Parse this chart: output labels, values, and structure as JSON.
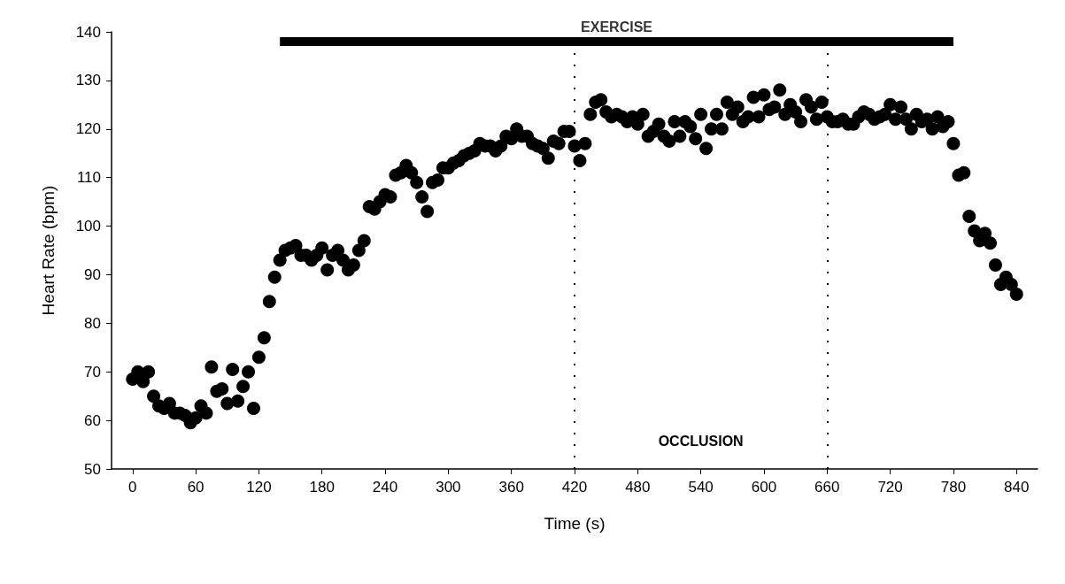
{
  "chart_data": {
    "type": "scatter",
    "xlabel": "Time (s)",
    "ylabel": "Heart Rate (bpm)",
    "xlim": [
      -20,
      860
    ],
    "xticks": [
      0,
      60,
      120,
      180,
      240,
      300,
      360,
      420,
      480,
      540,
      600,
      660,
      720,
      780,
      840
    ],
    "ylim": [
      50,
      140
    ],
    "yticks": [
      50,
      60,
      70,
      80,
      90,
      100,
      110,
      120,
      130,
      140
    ],
    "grid": false,
    "marker": "circle",
    "series": [
      {
        "color": "#000000",
        "x": [
          0,
          5,
          10,
          15,
          20,
          25,
          30,
          35,
          40,
          45,
          50,
          55,
          60,
          65,
          70,
          75,
          80,
          85,
          90,
          95,
          100,
          105,
          110,
          115,
          120,
          125,
          130,
          135,
          140,
          145,
          150,
          155,
          160,
          165,
          170,
          175,
          180,
          185,
          190,
          195,
          200,
          205,
          210,
          215,
          220,
          225,
          230,
          235,
          240,
          245,
          250,
          255,
          260,
          265,
          270,
          275,
          280,
          285,
          290,
          295,
          300,
          305,
          310,
          315,
          320,
          325,
          330,
          335,
          340,
          345,
          350,
          355,
          360,
          365,
          370,
          375,
          380,
          385,
          390,
          395,
          400,
          405,
          410,
          415,
          420,
          425,
          430,
          435,
          440,
          445,
          450,
          455,
          460,
          465,
          470,
          475,
          480,
          485,
          490,
          495,
          500,
          505,
          510,
          515,
          520,
          525,
          530,
          535,
          540,
          545,
          550,
          555,
          560,
          565,
          570,
          575,
          580,
          585,
          590,
          595,
          600,
          605,
          610,
          615,
          620,
          625,
          630,
          635,
          640,
          645,
          650,
          655,
          660,
          665,
          670,
          675,
          680,
          685,
          690,
          695,
          700,
          705,
          710,
          715,
          720,
          725,
          730,
          735,
          740,
          745,
          750,
          755,
          760,
          765,
          770,
          775,
          780,
          785,
          790,
          795,
          800,
          805,
          810,
          815,
          820,
          825,
          830,
          835,
          840
        ],
        "values": [
          68.5,
          70,
          68,
          70,
          65,
          63,
          62.5,
          63.5,
          61.5,
          61.5,
          61,
          59.5,
          60.5,
          63,
          61.5,
          71,
          66,
          66.5,
          63.5,
          70.5,
          64,
          67,
          70,
          62.5,
          73,
          77,
          84.5,
          89.5,
          93,
          95,
          95.5,
          96,
          94,
          94,
          93,
          94,
          95.5,
          91,
          94,
          95,
          93,
          91,
          92,
          95,
          97,
          104,
          103.5,
          105,
          106.5,
          106,
          110.5,
          111,
          112.5,
          111,
          109,
          106,
          103,
          109,
          109.5,
          112,
          112,
          113,
          113.5,
          114.5,
          115,
          115.5,
          117,
          116.5,
          116.5,
          115.5,
          116.5,
          118.5,
          118,
          120,
          118.5,
          118.5,
          117,
          116.5,
          116,
          114,
          117.5,
          117,
          119.5,
          119.5,
          116.5,
          113.5,
          117,
          123,
          125.5,
          126,
          123.5,
          122.5,
          123,
          122.5,
          121.5,
          122.5,
          121,
          123,
          118.5,
          119.5,
          121,
          118.5,
          117.5,
          121.5,
          118.5,
          121.5,
          120.5,
          118,
          123,
          116,
          120,
          123,
          120,
          125.5,
          123,
          124.5,
          121.5,
          122.5,
          126.5,
          122.5,
          127,
          124,
          124.5,
          128,
          123,
          125,
          123.5,
          121.5,
          126,
          124.5,
          122,
          125.5,
          122.5,
          121.5,
          121.5,
          122,
          121,
          121,
          122.5,
          123.5,
          123,
          122,
          122.5,
          123,
          125,
          122,
          124.5,
          122,
          120,
          123,
          121.5,
          122,
          120,
          122.5,
          120.5,
          121.5,
          117,
          110.5,
          111,
          102,
          99,
          97,
          98.5,
          96.5,
          92,
          88,
          89.5,
          88,
          86
        ]
      },
      {
        "type": "line",
        "marker": "none",
        "color": "#000000",
        "x": [
          140,
          780
        ],
        "values": [
          138,
          138
        ]
      }
    ],
    "ref_lines": [
      {
        "axis": "x",
        "value": 420,
        "color": "#000000",
        "line_style": "dotted"
      },
      {
        "axis": "x",
        "value": 660,
        "color": "#000000",
        "line_style": "dotted"
      }
    ],
    "annotations": [
      {
        "text": "EXERCISE",
        "x": 460,
        "y": 138
      },
      "OCCLUSION"
    ]
  }
}
